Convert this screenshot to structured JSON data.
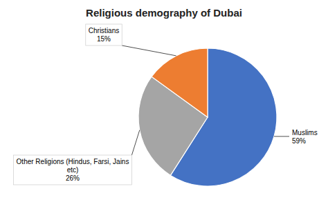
{
  "chart_data": {
    "type": "pie",
    "title": "Religious demography of Dubai",
    "values": [
      59,
      26,
      15
    ],
    "value_labels": [
      "Muslims\n59%",
      "Other Religions (Hindus, Farsi, Jains\netc)\n26%",
      "Christians\n15%"
    ],
    "colors": [
      "#4472C4",
      "#A5A5A5",
      "#ED7D31"
    ]
  }
}
